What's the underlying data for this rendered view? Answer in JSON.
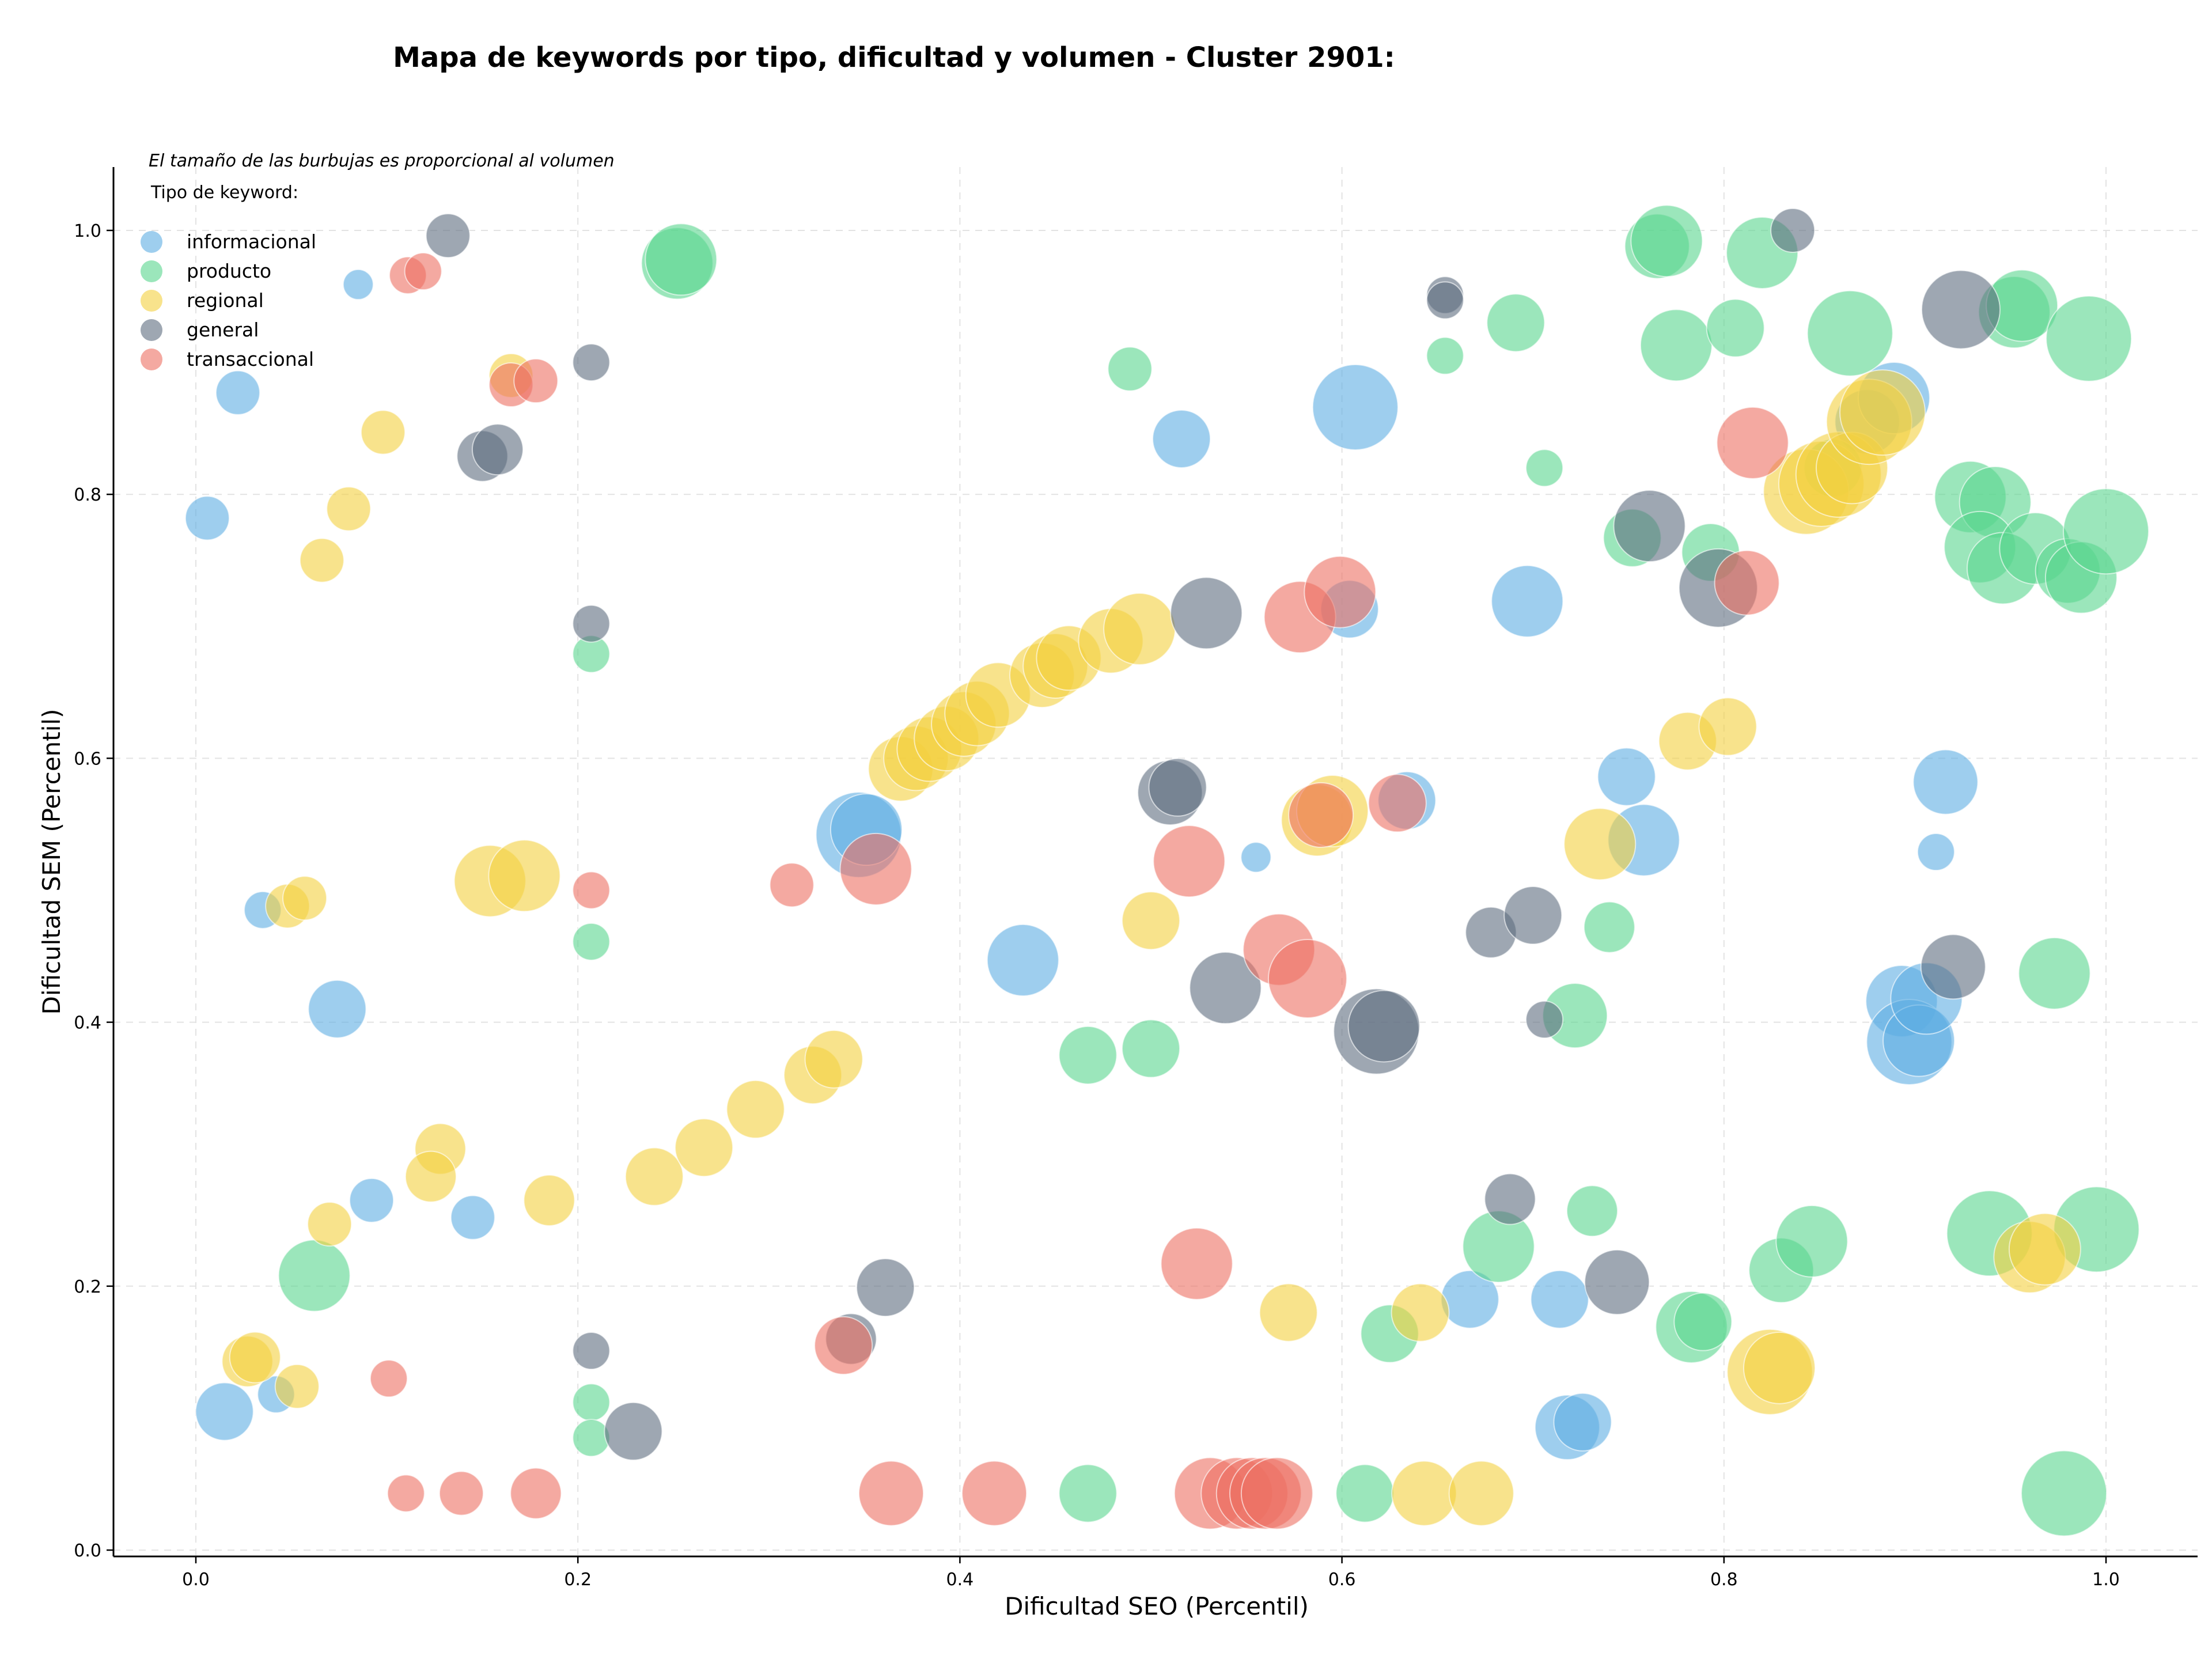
{
  "chart_data": {
    "type": "scatter",
    "title": "Mapa de keywords por tipo, dificultad y volumen - Cluster 2901:",
    "xlabel": "Dificultad SEO (Percentil)",
    "ylabel": "Dificultad SEM (Percentil)",
    "xlim": [
      -0.04,
      1.05
    ],
    "ylim": [
      -0.005,
      1.05
    ],
    "x_ticks": [
      "0.0",
      "0.2",
      "0.4",
      "0.6",
      "0.8",
      "1.0"
    ],
    "y_ticks": [
      "0.0",
      "0.2",
      "0.4",
      "0.6",
      "0.8",
      "1.0"
    ],
    "grid": true,
    "legend_position": "top-left",
    "annotation": "El tamaño de las burbujas es proporcional al volumen",
    "legend_title": "Tipo de keyword:",
    "size_note": "bubble size proportional to volume (relative 1-5)",
    "series": [
      {
        "name": "informacional",
        "color": "#5DADE2",
        "points": [
          [
            0.022,
            0.877,
            2
          ],
          [
            0.006,
            0.782,
            2
          ],
          [
            0.085,
            0.959,
            1
          ],
          [
            0.035,
            0.485,
            1.5
          ],
          [
            0.074,
            0.41,
            3
          ],
          [
            0.092,
            0.265,
            2
          ],
          [
            0.145,
            0.252,
            2
          ],
          [
            0.015,
            0.105,
            3
          ],
          [
            0.042,
            0.118,
            1.5
          ],
          [
            0.516,
            0.842,
            3
          ],
          [
            0.607,
            0.866,
            5
          ],
          [
            0.347,
            0.542,
            5
          ],
          [
            0.351,
            0.546,
            4
          ],
          [
            0.433,
            0.447,
            4
          ],
          [
            0.555,
            0.525,
            1
          ],
          [
            0.604,
            0.713,
            3
          ],
          [
            0.634,
            0.568,
            3
          ],
          [
            0.667,
            0.19,
            3
          ],
          [
            0.697,
            0.719,
            4
          ],
          [
            0.714,
            0.19,
            3
          ],
          [
            0.718,
            0.093,
            3.5
          ],
          [
            0.726,
            0.097,
            3
          ],
          [
            0.749,
            0.586,
            3
          ],
          [
            0.758,
            0.538,
            4
          ],
          [
            0.875,
            0.855,
            3.5
          ],
          [
            0.889,
            0.873,
            4
          ],
          [
            0.893,
            0.416,
            4
          ],
          [
            0.897,
            0.385,
            5
          ],
          [
            0.902,
            0.386,
            4
          ],
          [
            0.906,
            0.418,
            4
          ],
          [
            0.911,
            0.529,
            1.5
          ],
          [
            0.916,
            0.582,
            3.5
          ]
        ]
      },
      {
        "name": "producto",
        "color": "#58D68D",
        "points": [
          [
            0.252,
            0.975,
            4
          ],
          [
            0.254,
            0.978,
            4
          ],
          [
            0.207,
            0.679,
            1.5
          ],
          [
            0.207,
            0.461,
            1.5
          ],
          [
            0.207,
            0.112,
            1.5
          ],
          [
            0.207,
            0.085,
            1.5
          ],
          [
            0.062,
            0.208,
            4
          ],
          [
            0.489,
            0.895,
            2
          ],
          [
            0.467,
            0.375,
            3
          ],
          [
            0.5,
            0.38,
            3
          ],
          [
            0.467,
            0.043,
            3
          ],
          [
            0.612,
            0.043,
            3
          ],
          [
            0.625,
            0.164,
            3
          ],
          [
            0.654,
            0.905,
            1.5
          ],
          [
            0.691,
            0.93,
            3
          ],
          [
            0.706,
            0.82,
            1.5
          ],
          [
            0.682,
            0.23,
            4
          ],
          [
            0.722,
            0.405,
            3.5
          ],
          [
            0.731,
            0.257,
            2.5
          ],
          [
            0.74,
            0.472,
            2.5
          ],
          [
            0.752,
            0.767,
            3
          ],
          [
            0.765,
            0.988,
            3.5
          ],
          [
            0.77,
            0.992,
            4
          ],
          [
            0.775,
            0.913,
            4
          ],
          [
            0.806,
            0.926,
            3
          ],
          [
            0.793,
            0.756,
            3
          ],
          [
            0.783,
            0.169,
            4
          ],
          [
            0.789,
            0.173,
            3
          ],
          [
            0.82,
            0.983,
            4
          ],
          [
            0.866,
            0.922,
            5
          ],
          [
            0.857,
            0.82,
            3
          ],
          [
            0.83,
            0.212,
            3.5
          ],
          [
            0.846,
            0.234,
            4
          ],
          [
            0.929,
            0.798,
            4
          ],
          [
            0.942,
            0.794,
            4
          ],
          [
            0.952,
            0.938,
            4
          ],
          [
            0.956,
            0.943,
            4
          ],
          [
            0.934,
            0.76,
            4
          ],
          [
            0.946,
            0.744,
            4
          ],
          [
            0.963,
            0.759,
            4
          ],
          [
            0.98,
            0.742,
            3.5
          ],
          [
            0.987,
            0.737,
            4
          ],
          [
            0.991,
            0.918,
            5
          ],
          [
            1.0,
            0.772,
            5
          ],
          [
            0.973,
            0.437,
            4
          ],
          [
            0.939,
            0.24,
            5
          ],
          [
            0.995,
            0.243,
            5
          ],
          [
            0.978,
            0.043,
            5
          ]
        ]
      },
      {
        "name": "regional",
        "color": "#F4D03F",
        "points": [
          [
            0.098,
            0.847,
            2
          ],
          [
            0.08,
            0.789,
            2
          ],
          [
            0.066,
            0.75,
            2
          ],
          [
            0.165,
            0.89,
            2
          ],
          [
            0.048,
            0.488,
            2
          ],
          [
            0.057,
            0.494,
            2
          ],
          [
            0.154,
            0.507,
            4
          ],
          [
            0.172,
            0.511,
            4
          ],
          [
            0.128,
            0.304,
            2.5
          ],
          [
            0.123,
            0.283,
            2.5
          ],
          [
            0.07,
            0.247,
            2
          ],
          [
            0.185,
            0.265,
            2.5
          ],
          [
            0.027,
            0.143,
            2.5
          ],
          [
            0.031,
            0.146,
            2.5
          ],
          [
            0.053,
            0.124,
            2
          ],
          [
            0.24,
            0.283,
            3
          ],
          [
            0.266,
            0.305,
            3
          ],
          [
            0.293,
            0.334,
            3
          ],
          [
            0.323,
            0.36,
            3
          ],
          [
            0.334,
            0.372,
            3
          ],
          [
            0.369,
            0.592,
            3.5
          ],
          [
            0.377,
            0.6,
            3.5
          ],
          [
            0.384,
            0.607,
            3.5
          ],
          [
            0.393,
            0.615,
            3.5
          ],
          [
            0.402,
            0.626,
            3.5
          ],
          [
            0.409,
            0.634,
            3.5
          ],
          [
            0.42,
            0.648,
            3.5
          ],
          [
            0.443,
            0.663,
            3.5
          ],
          [
            0.45,
            0.67,
            3.5
          ],
          [
            0.457,
            0.676,
            3.5
          ],
          [
            0.479,
            0.689,
            3.5
          ],
          [
            0.494,
            0.698,
            4
          ],
          [
            0.5,
            0.477,
            3
          ],
          [
            0.587,
            0.553,
            4
          ],
          [
            0.595,
            0.56,
            4
          ],
          [
            0.572,
            0.18,
            3
          ],
          [
            0.641,
            0.18,
            3
          ],
          [
            0.643,
            0.043,
            3.5
          ],
          [
            0.673,
            0.043,
            3.5
          ],
          [
            0.735,
            0.535,
            4
          ],
          [
            0.781,
            0.613,
            3
          ],
          [
            0.802,
            0.624,
            3
          ],
          [
            0.824,
            0.135,
            5
          ],
          [
            0.829,
            0.138,
            4
          ],
          [
            0.843,
            0.802,
            5
          ],
          [
            0.851,
            0.808,
            5
          ],
          [
            0.86,
            0.815,
            5
          ],
          [
            0.867,
            0.82,
            4
          ],
          [
            0.876,
            0.855,
            5
          ],
          [
            0.883,
            0.862,
            5
          ],
          [
            0.96,
            0.222,
            4
          ],
          [
            0.968,
            0.228,
            4
          ]
        ]
      },
      {
        "name": "general",
        "color": "#5D6D7E",
        "points": [
          [
            0.132,
            0.996,
            2
          ],
          [
            0.15,
            0.829,
            2.5
          ],
          [
            0.158,
            0.834,
            2.5
          ],
          [
            0.207,
            0.9,
            1.5
          ],
          [
            0.207,
            0.702,
            1.5
          ],
          [
            0.207,
            0.151,
            1.5
          ],
          [
            0.229,
            0.09,
            3
          ],
          [
            0.343,
            0.16,
            2.5
          ],
          [
            0.361,
            0.199,
            3
          ],
          [
            0.51,
            0.574,
            3.5
          ],
          [
            0.514,
            0.578,
            3
          ],
          [
            0.529,
            0.71,
            4
          ],
          [
            0.539,
            0.426,
            4
          ],
          [
            0.618,
            0.393,
            5
          ],
          [
            0.622,
            0.397,
            4
          ],
          [
            0.654,
            0.951,
            1.5
          ],
          [
            0.654,
            0.947,
            1.5
          ],
          [
            0.678,
            0.468,
            2.5
          ],
          [
            0.7,
            0.481,
            3
          ],
          [
            0.706,
            0.402,
            1.5
          ],
          [
            0.688,
            0.266,
            2.5
          ],
          [
            0.744,
            0.203,
            3.5
          ],
          [
            0.761,
            0.776,
            4
          ],
          [
            0.797,
            0.729,
            4.5
          ],
          [
            0.836,
            1.0,
            2
          ],
          [
            0.924,
            0.94,
            4.5
          ],
          [
            0.92,
            0.442,
            3.5
          ]
        ]
      },
      {
        "name": "transaccional",
        "color": "#EC7063",
        "points": [
          [
            0.111,
            0.966,
            1.5
          ],
          [
            0.119,
            0.969,
            1.5
          ],
          [
            0.165,
            0.883,
            2
          ],
          [
            0.178,
            0.886,
            2
          ],
          [
            0.101,
            0.13,
            1.5
          ],
          [
            0.11,
            0.043,
            1.5
          ],
          [
            0.139,
            0.043,
            2
          ],
          [
            0.178,
            0.043,
            2.5
          ],
          [
            0.207,
            0.5,
            1.5
          ],
          [
            0.312,
            0.504,
            2
          ],
          [
            0.356,
            0.516,
            4
          ],
          [
            0.339,
            0.155,
            3
          ],
          [
            0.364,
            0.043,
            3.5
          ],
          [
            0.418,
            0.043,
            3.5
          ],
          [
            0.52,
            0.522,
            4
          ],
          [
            0.524,
            0.217,
            4
          ],
          [
            0.531,
            0.043,
            4
          ],
          [
            0.545,
            0.043,
            4
          ],
          [
            0.553,
            0.043,
            4
          ],
          [
            0.56,
            0.043,
            4
          ],
          [
            0.566,
            0.043,
            4
          ],
          [
            0.567,
            0.455,
            4
          ],
          [
            0.578,
            0.707,
            4
          ],
          [
            0.582,
            0.433,
            4.5
          ],
          [
            0.589,
            0.557,
            3.5
          ],
          [
            0.599,
            0.726,
            4
          ],
          [
            0.629,
            0.566,
            3
          ],
          [
            0.815,
            0.839,
            4
          ],
          [
            0.812,
            0.733,
            3.5
          ]
        ]
      }
    ]
  }
}
